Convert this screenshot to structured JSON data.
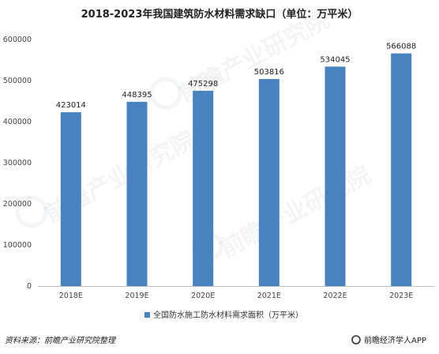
{
  "chart_data": {
    "type": "bar",
    "title": "2018-2023年我国建筑防水材料需求缺口（单位：万平米）",
    "categories": [
      "2018E",
      "2019E",
      "2020E",
      "2021E",
      "2022E",
      "2023E"
    ],
    "series": [
      {
        "name": "全国防水施工防水材料需求面积（万平米）",
        "values": [
          423014,
          448395,
          475298,
          503816,
          534045,
          566088
        ]
      }
    ],
    "value_labels": [
      "423014",
      "448395",
      "475298",
      "503816",
      "534045",
      "566088"
    ],
    "ylim": [
      0,
      600000
    ],
    "yticks": [
      0,
      100000,
      200000,
      300000,
      400000,
      500000,
      600000
    ],
    "ytick_labels": [
      "0",
      "100000",
      "200000",
      "300000",
      "400000",
      "500000",
      "600000"
    ],
    "xlabel": "",
    "ylabel": "",
    "grid": false,
    "legend_position": "bottom",
    "bar_color": "#4a82bf"
  },
  "footer": {
    "source": "资料来源：前瞻产业研究院整理",
    "brand": "前瞻经济学人APP"
  },
  "watermark": {
    "text": "前瞻产业研究院"
  }
}
